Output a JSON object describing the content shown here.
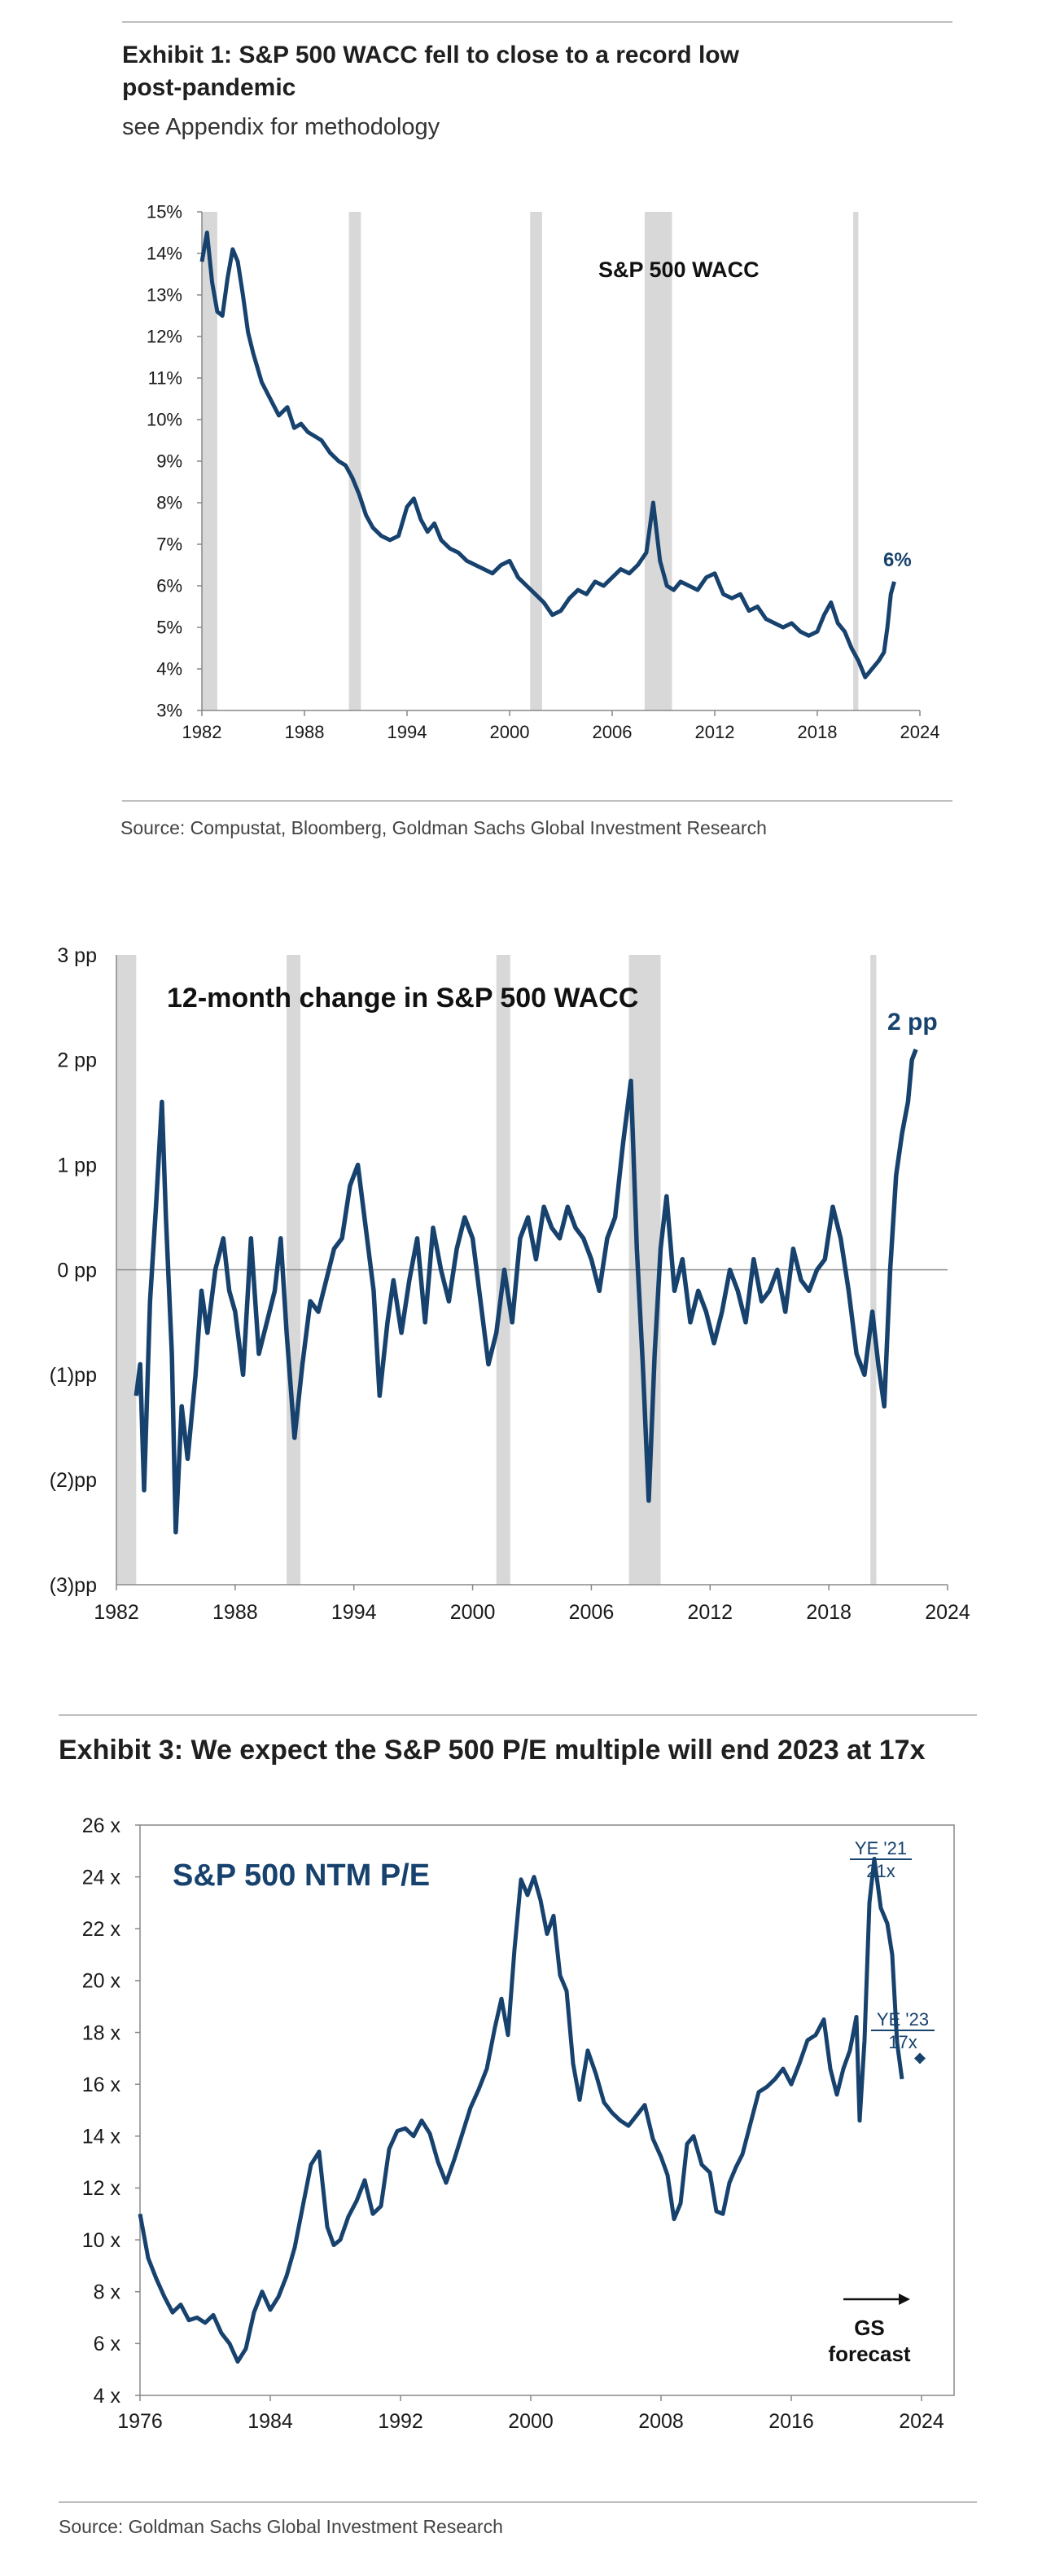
{
  "colors": {
    "line": "#17426e",
    "band": "#d8d8d8",
    "axis": "#888888",
    "text": "#1a1a1a"
  },
  "exhibit1": {
    "title_line1": "Exhibit 1: S&P 500 WACC fell to close to a record low",
    "title_line2": "post-pandemic",
    "subtitle": "see Appendix for methodology",
    "source": "Source: Compustat, Bloomberg, Goldman Sachs Global Investment Research"
  },
  "exhibit3": {
    "title": "Exhibit 3: We expect the S&P 500 P/E multiple will end 2023 at 17x",
    "source": "Source: Goldman Sachs Global Investment Research"
  },
  "chart_data": [
    {
      "type": "line",
      "title": "S&P 500 WACC",
      "xlabel": "",
      "ylabel": "",
      "xlim": [
        1982,
        2024
      ],
      "ylim": [
        3,
        15
      ],
      "x_ticks": [
        1982,
        1988,
        1994,
        2000,
        2006,
        2012,
        2018,
        2024
      ],
      "y_ticks": [
        "3%",
        "4%",
        "5%",
        "6%",
        "7%",
        "8%",
        "9%",
        "10%",
        "11%",
        "12%",
        "13%",
        "14%",
        "15%"
      ],
      "recession_bands": [
        [
          1982.0,
          1982.9
        ],
        [
          1990.6,
          1991.3
        ],
        [
          2001.2,
          2001.9
        ],
        [
          2007.9,
          2009.5
        ],
        [
          2020.1,
          2020.4
        ]
      ],
      "series": [
        {
          "name": "S&P 500 WACC",
          "x": [
            1982.0,
            1982.3,
            1982.6,
            1982.9,
            1983.2,
            1983.5,
            1983.8,
            1984.1,
            1984.4,
            1984.7,
            1985.0,
            1985.5,
            1986.0,
            1986.5,
            1987.0,
            1987.4,
            1987.8,
            1988.2,
            1988.6,
            1989.0,
            1989.5,
            1990.0,
            1990.4,
            1990.8,
            1991.2,
            1991.6,
            1992.0,
            1992.5,
            1993.0,
            1993.5,
            1994.0,
            1994.4,
            1994.8,
            1995.2,
            1995.6,
            1996.0,
            1996.5,
            1997.0,
            1997.5,
            1998.0,
            1998.5,
            1999.0,
            1999.5,
            2000.0,
            2000.5,
            2001.0,
            2001.5,
            2002.0,
            2002.5,
            2003.0,
            2003.5,
            2004.0,
            2004.5,
            2005.0,
            2005.5,
            2006.0,
            2006.5,
            2007.0,
            2007.5,
            2008.0,
            2008.4,
            2008.8,
            2009.2,
            2009.6,
            2010.0,
            2010.5,
            2011.0,
            2011.5,
            2012.0,
            2012.5,
            2013.0,
            2013.5,
            2014.0,
            2014.5,
            2015.0,
            2015.5,
            2016.0,
            2016.5,
            2017.0,
            2017.5,
            2018.0,
            2018.4,
            2018.8,
            2019.2,
            2019.6,
            2020.0,
            2020.4,
            2020.8,
            2021.2,
            2021.6,
            2021.9,
            2022.1,
            2022.3,
            2022.5
          ],
          "values": [
            13.8,
            14.5,
            13.3,
            12.6,
            12.5,
            13.4,
            14.1,
            13.8,
            13.0,
            12.1,
            11.6,
            10.9,
            10.5,
            10.1,
            10.3,
            9.8,
            9.9,
            9.7,
            9.6,
            9.5,
            9.2,
            9.0,
            8.9,
            8.6,
            8.2,
            7.7,
            7.4,
            7.2,
            7.1,
            7.2,
            7.9,
            8.1,
            7.6,
            7.3,
            7.5,
            7.1,
            6.9,
            6.8,
            6.6,
            6.5,
            6.4,
            6.3,
            6.5,
            6.6,
            6.2,
            6.0,
            5.8,
            5.6,
            5.3,
            5.4,
            5.7,
            5.9,
            5.8,
            6.1,
            6.0,
            6.2,
            6.4,
            6.3,
            6.5,
            6.8,
            8.0,
            6.6,
            6.0,
            5.9,
            6.1,
            6.0,
            5.9,
            6.2,
            6.3,
            5.8,
            5.7,
            5.8,
            5.4,
            5.5,
            5.2,
            5.1,
            5.0,
            5.1,
            4.9,
            4.8,
            4.9,
            5.3,
            5.6,
            5.1,
            4.9,
            4.5,
            4.2,
            3.8,
            4.0,
            4.2,
            4.4,
            5.0,
            5.8,
            6.1
          ]
        }
      ],
      "annotations": [
        {
          "text": "6%"
        }
      ]
    },
    {
      "type": "line",
      "title": "12-month change in S&P 500 WACC",
      "xlabel": "",
      "ylabel": "",
      "xlim": [
        1982,
        2024
      ],
      "ylim": [
        -3,
        3
      ],
      "x_ticks": [
        1982,
        1988,
        1994,
        2000,
        2006,
        2012,
        2018,
        2024
      ],
      "y_ticks": [
        "(3)pp",
        "(2)pp",
        "(1)pp",
        "0 pp",
        "1 pp",
        "2 pp",
        "3 pp"
      ],
      "recession_bands": [
        [
          1982.0,
          1983.0
        ],
        [
          1990.6,
          1991.3
        ],
        [
          2001.2,
          2001.9
        ],
        [
          2007.9,
          2009.5
        ],
        [
          2020.1,
          2020.4
        ]
      ],
      "series": [
        {
          "name": "12-month change",
          "x": [
            1983.0,
            1983.2,
            1983.4,
            1983.7,
            1984.0,
            1984.3,
            1984.5,
            1984.8,
            1985.0,
            1985.3,
            1985.6,
            1986.0,
            1986.3,
            1986.6,
            1987.0,
            1987.4,
            1987.7,
            1988.0,
            1988.4,
            1988.8,
            1989.2,
            1989.6,
            1990.0,
            1990.3,
            1990.6,
            1991.0,
            1991.4,
            1991.8,
            1992.2,
            1992.6,
            1993.0,
            1993.4,
            1993.8,
            1994.2,
            1994.6,
            1995.0,
            1995.3,
            1995.7,
            1996.0,
            1996.4,
            1996.8,
            1997.2,
            1997.6,
            1998.0,
            1998.4,
            1998.8,
            1999.2,
            1999.6,
            2000.0,
            2000.4,
            2000.8,
            2001.2,
            2001.6,
            2002.0,
            2002.4,
            2002.8,
            2003.2,
            2003.6,
            2004.0,
            2004.4,
            2004.8,
            2005.2,
            2005.6,
            2006.0,
            2006.4,
            2006.8,
            2007.2,
            2007.6,
            2008.0,
            2008.3,
            2008.6,
            2008.9,
            2009.2,
            2009.5,
            2009.8,
            2010.2,
            2010.6,
            2011.0,
            2011.4,
            2011.8,
            2012.2,
            2012.6,
            2013.0,
            2013.4,
            2013.8,
            2014.2,
            2014.6,
            2015.0,
            2015.4,
            2015.8,
            2016.2,
            2016.6,
            2017.0,
            2017.4,
            2017.8,
            2018.2,
            2018.6,
            2019.0,
            2019.4,
            2019.8,
            2020.2,
            2020.5,
            2020.8,
            2021.1,
            2021.4,
            2021.7,
            2022.0,
            2022.2,
            2022.4
          ],
          "values": [
            -1.2,
            -0.9,
            -2.1,
            -0.3,
            0.6,
            1.6,
            0.5,
            -0.8,
            -2.5,
            -1.3,
            -1.8,
            -1.0,
            -0.2,
            -0.6,
            0.0,
            0.3,
            -0.2,
            -0.4,
            -1.0,
            0.3,
            -0.8,
            -0.5,
            -0.2,
            0.3,
            -0.6,
            -1.6,
            -0.9,
            -0.3,
            -0.4,
            -0.1,
            0.2,
            0.3,
            0.8,
            1.0,
            0.4,
            -0.2,
            -1.2,
            -0.5,
            -0.1,
            -0.6,
            -0.1,
            0.3,
            -0.5,
            0.4,
            0.0,
            -0.3,
            0.2,
            0.5,
            0.3,
            -0.3,
            -0.9,
            -0.6,
            0.0,
            -0.5,
            0.3,
            0.5,
            0.1,
            0.6,
            0.4,
            0.3,
            0.6,
            0.4,
            0.3,
            0.1,
            -0.2,
            0.3,
            0.5,
            1.2,
            1.8,
            0.2,
            -0.9,
            -2.2,
            -0.8,
            0.2,
            0.7,
            -0.2,
            0.1,
            -0.5,
            -0.2,
            -0.4,
            -0.7,
            -0.4,
            0.0,
            -0.2,
            -0.5,
            0.1,
            -0.3,
            -0.2,
            0.0,
            -0.4,
            0.2,
            -0.1,
            -0.2,
            0.0,
            0.1,
            0.6,
            0.3,
            -0.2,
            -0.8,
            -1.0,
            -0.4,
            -0.9,
            -1.3,
            0.0,
            0.9,
            1.3,
            1.6,
            2.0,
            2.1
          ]
        }
      ],
      "annotations": [
        {
          "text": "2 pp"
        }
      ]
    },
    {
      "type": "line",
      "title": "S&P 500 NTM P/E",
      "xlabel": "",
      "ylabel": "",
      "xlim": [
        1976,
        2026
      ],
      "ylim": [
        4,
        26
      ],
      "x_ticks": [
        1976,
        1984,
        1992,
        2000,
        2008,
        2016,
        2024
      ],
      "y_ticks": [
        "4 x",
        "6 x",
        "8 x",
        "10 x",
        "12 x",
        "14 x",
        "16 x",
        "18 x",
        "20 x",
        "22 x",
        "24 x",
        "26 x"
      ],
      "series": [
        {
          "name": "S&P 500 NTM P/E",
          "x": [
            1976.0,
            1976.5,
            1977.0,
            1977.5,
            1978.0,
            1978.5,
            1979.0,
            1979.5,
            1980.0,
            1980.5,
            1981.0,
            1981.5,
            1982.0,
            1982.5,
            1983.0,
            1983.5,
            1984.0,
            1984.5,
            1985.0,
            1985.5,
            1986.0,
            1986.5,
            1987.0,
            1987.5,
            1987.9,
            1988.3,
            1988.8,
            1989.3,
            1989.8,
            1990.3,
            1990.8,
            1991.3,
            1991.8,
            1992.3,
            1992.8,
            1993.3,
            1993.8,
            1994.3,
            1994.8,
            1995.3,
            1995.8,
            1996.3,
            1996.8,
            1997.3,
            1997.8,
            1998.2,
            1998.6,
            1999.0,
            1999.4,
            1999.8,
            2000.2,
            2000.6,
            2001.0,
            2001.4,
            2001.8,
            2002.2,
            2002.6,
            2003.0,
            2003.5,
            2004.0,
            2004.5,
            2005.0,
            2005.5,
            2006.0,
            2006.5,
            2007.0,
            2007.5,
            2008.0,
            2008.4,
            2008.8,
            2009.2,
            2009.6,
            2010.0,
            2010.5,
            2011.0,
            2011.4,
            2011.8,
            2012.2,
            2012.6,
            2013.0,
            2013.5,
            2014.0,
            2014.5,
            2015.0,
            2015.5,
            2016.0,
            2016.5,
            2017.0,
            2017.5,
            2018.0,
            2018.4,
            2018.8,
            2019.2,
            2019.6,
            2020.0,
            2020.2,
            2020.5,
            2020.8,
            2021.1,
            2021.5,
            2021.9,
            2022.2,
            2022.5,
            2022.8
          ],
          "values": [
            11.0,
            9.3,
            8.5,
            7.8,
            7.2,
            7.5,
            6.9,
            7.0,
            6.8,
            7.1,
            6.4,
            6.0,
            5.3,
            5.8,
            7.2,
            8.0,
            7.3,
            7.8,
            8.6,
            9.7,
            11.3,
            12.9,
            13.4,
            10.5,
            9.8,
            10.0,
            10.9,
            11.5,
            12.3,
            11.0,
            11.3,
            13.5,
            14.2,
            14.3,
            14.0,
            14.6,
            14.1,
            13.0,
            12.2,
            13.1,
            14.1,
            15.1,
            15.8,
            16.6,
            18.2,
            19.3,
            17.9,
            21.2,
            23.9,
            23.3,
            24.0,
            23.1,
            21.8,
            22.5,
            20.2,
            19.6,
            16.8,
            15.4,
            17.3,
            16.4,
            15.3,
            14.9,
            14.6,
            14.4,
            14.8,
            15.2,
            13.9,
            13.2,
            12.5,
            10.8,
            11.4,
            13.7,
            14.0,
            12.9,
            12.6,
            11.1,
            11.0,
            12.2,
            12.8,
            13.3,
            14.5,
            15.7,
            15.9,
            16.2,
            16.6,
            16.0,
            16.8,
            17.7,
            17.9,
            18.5,
            16.6,
            15.6,
            16.6,
            17.3,
            18.6,
            14.6,
            17.7,
            23.0,
            24.7,
            22.8,
            22.2,
            21.0,
            17.6,
            16.2
          ]
        }
      ],
      "forecast": {
        "x": 2023.9,
        "value": 17.0
      },
      "annotations": [
        {
          "line1": "YE '21",
          "line2": "21x"
        },
        {
          "line1": "YE '23",
          "line2": "17x"
        },
        {
          "line1": "GS",
          "line2": "forecast"
        }
      ]
    }
  ]
}
